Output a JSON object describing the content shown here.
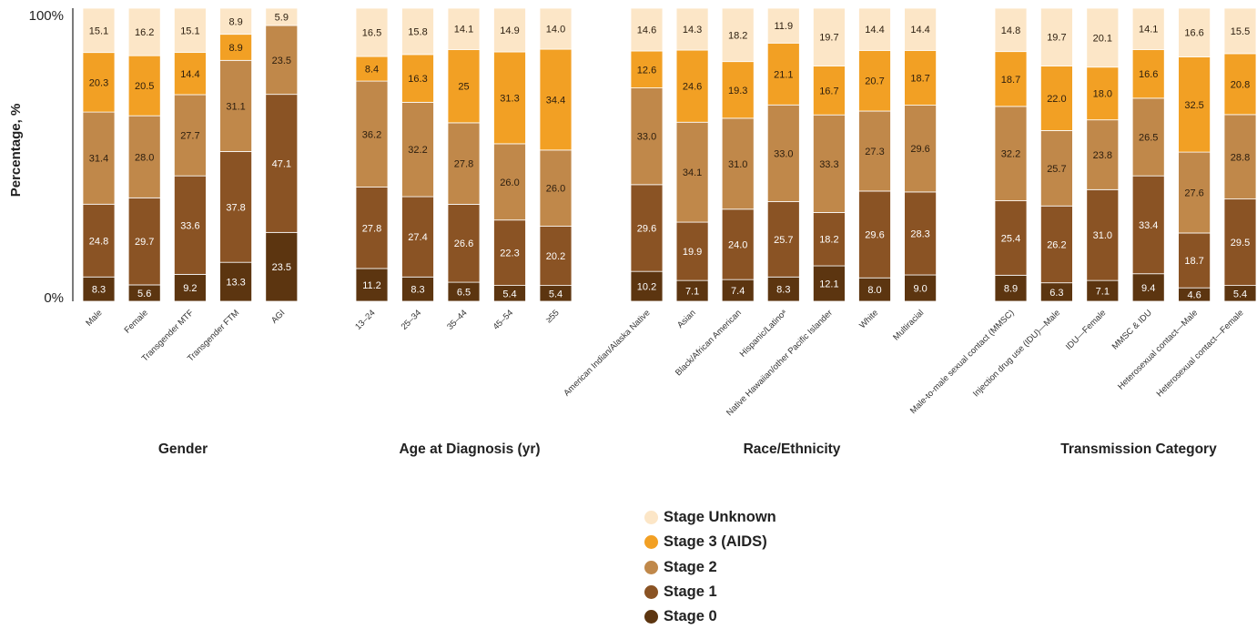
{
  "chart_data": {
    "type": "bar",
    "stacked": true,
    "ylabel": "Percentage, %",
    "ylim": [
      0,
      100
    ],
    "y_tick_labels": [
      "100%",
      "0%"
    ],
    "series": [
      {
        "name": "Stage 0",
        "color": "#5c3510"
      },
      {
        "name": "Stage 1",
        "color": "#8a5324"
      },
      {
        "name": "Stage 2",
        "color": "#c0884a"
      },
      {
        "name": "Stage 3 (AIDS)",
        "color": "#f2a024"
      },
      {
        "name": "Stage Unknown",
        "color": "#fce6c7"
      }
    ],
    "legend_order": [
      "Stage Unknown",
      "Stage 3 (AIDS)",
      "Stage 2",
      "Stage 1",
      "Stage 0"
    ],
    "legend_position": "bottom-center",
    "groups": [
      {
        "title": "Gender",
        "categories": [
          {
            "label": "Male",
            "values": [
              "8.3",
              "24.8",
              "31.4",
              "20.3",
              "15.1"
            ]
          },
          {
            "label": "Female",
            "values": [
              "5.6",
              "29.7",
              "28.0",
              "20.5",
              "16.2"
            ]
          },
          {
            "label": "Transgender MTF",
            "values": [
              "9.2",
              "33.6",
              "27.7",
              "14.4",
              "15.1"
            ]
          },
          {
            "label": "Transgender FTM",
            "values": [
              "13.3",
              "37.8",
              "31.1",
              "8.9",
              "8.9"
            ]
          },
          {
            "label": "AGI",
            "values": [
              "23.5",
              "47.1",
              "23.5",
              "",
              "5.9"
            ]
          }
        ]
      },
      {
        "title": "Age at Diagnosis (yr)",
        "categories": [
          {
            "label": "13–24",
            "values": [
              "11.2",
              "27.8",
              "36.2",
              "8.4",
              "16.5"
            ]
          },
          {
            "label": "25–34",
            "values": [
              "8.3",
              "27.4",
              "32.2",
              "16.3",
              "15.8"
            ]
          },
          {
            "label": "35–44",
            "values": [
              "6.5",
              "26.6",
              "27.8",
              "25",
              "14.1"
            ]
          },
          {
            "label": "45–54",
            "values": [
              "5.4",
              "22.3",
              "26.0",
              "31.3",
              "14.9"
            ]
          },
          {
            "label": "≥55",
            "values": [
              "5.4",
              "20.2",
              "26.0",
              "34.4",
              "14.0"
            ]
          }
        ]
      },
      {
        "title": "Race/Ethnicity",
        "categories": [
          {
            "label": "American Indian/Alaska Native",
            "values": [
              "10.2",
              "29.6",
              "33.0",
              "12.6",
              "14.6"
            ]
          },
          {
            "label": "Asian",
            "values": [
              "7.1",
              "19.9",
              "34.1",
              "24.6",
              "14.3"
            ]
          },
          {
            "label": "Black/African American",
            "values": [
              "7.4",
              "24.0",
              "31.0",
              "19.3",
              "18.2"
            ]
          },
          {
            "label": "Hispanic/Latinoᵃ",
            "values": [
              "8.3",
              "25.7",
              "33.0",
              "21.1",
              "11.9"
            ]
          },
          {
            "label": "Native Hawaiian/other Pacific Islander",
            "values": [
              "12.1",
              "18.2",
              "33.3",
              "16.7",
              "19.7"
            ]
          },
          {
            "label": "White",
            "values": [
              "8.0",
              "29.6",
              "27.3",
              "20.7",
              "14.4"
            ]
          },
          {
            "label": "Multiracial",
            "values": [
              "9.0",
              "28.3",
              "29.6",
              "18.7",
              "14.4"
            ]
          }
        ]
      },
      {
        "title": "Transmission Category",
        "categories": [
          {
            "label": "Male-to-male sexual contact (MMSC)",
            "values": [
              "8.9",
              "25.4",
              "32.2",
              "18.7",
              "14.8"
            ]
          },
          {
            "label": "Injection drug use (IDU)—Male",
            "values": [
              "6.3",
              "26.2",
              "25.7",
              "22.0",
              "19.7"
            ]
          },
          {
            "label": "IDU—Female",
            "values": [
              "7.1",
              "31.0",
              "23.8",
              "18.0",
              "20.1"
            ]
          },
          {
            "label": "MMSC & IDU",
            "values": [
              "9.4",
              "33.4",
              "26.5",
              "16.6",
              "14.1"
            ]
          },
          {
            "label": "Heterosexual contact—Male",
            "values": [
              "4.6",
              "18.7",
              "27.6",
              "32.5",
              "16.6"
            ]
          },
          {
            "label": "Heterosexual contact—Female",
            "values": [
              "5.4",
              "29.5",
              "28.8",
              "20.8",
              "15.5"
            ]
          }
        ]
      }
    ]
  }
}
